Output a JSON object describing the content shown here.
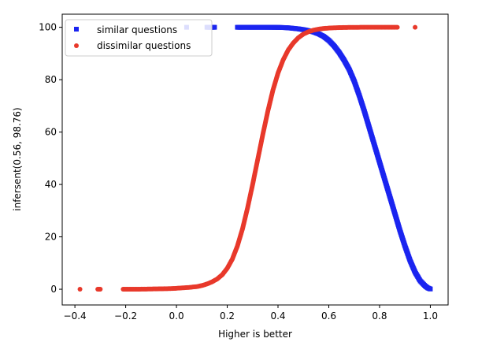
{
  "chart_data": {
    "type": "scatter",
    "title": "",
    "xlabel": "Higher is better",
    "ylabel": "infersent(0.56, 98.76)",
    "xlim": [
      -0.45,
      1.07
    ],
    "ylim": [
      -6,
      105
    ],
    "xticks": [
      -0.4,
      -0.2,
      0.0,
      0.2,
      0.4,
      0.6,
      0.8,
      1.0
    ],
    "xtick_labels": [
      "−0.4",
      "−0.2",
      "0.0",
      "0.2",
      "0.4",
      "0.6",
      "0.8",
      "1.0"
    ],
    "yticks": [
      0,
      20,
      40,
      60,
      80,
      100
    ],
    "ytick_labels": [
      "0",
      "20",
      "40",
      "60",
      "80",
      "100"
    ],
    "grid": false,
    "legend_position": "top-left",
    "series": [
      {
        "name": "similar questions",
        "color": "#1a24f0",
        "marker": "square",
        "points": [
          [
            0.04,
            100
          ],
          [
            0.12,
            100
          ],
          [
            0.13,
            100
          ],
          [
            0.14,
            100
          ],
          [
            0.15,
            100
          ],
          [
            0.24,
            100
          ],
          [
            0.25,
            100
          ],
          [
            0.26,
            100
          ],
          [
            0.28,
            100
          ],
          [
            0.29,
            100
          ],
          [
            0.3,
            100
          ],
          [
            0.31,
            100
          ],
          [
            0.32,
            100
          ],
          [
            0.33,
            100
          ],
          [
            0.34,
            100
          ],
          [
            0.35,
            100
          ],
          [
            0.36,
            99.99
          ],
          [
            0.38,
            99.98
          ],
          [
            0.4,
            99.95
          ],
          [
            0.42,
            99.9
          ],
          [
            0.44,
            99.8
          ],
          [
            0.46,
            99.6
          ],
          [
            0.48,
            99.4
          ],
          [
            0.5,
            99.1
          ],
          [
            0.52,
            98.7
          ],
          [
            0.54,
            98.2
          ],
          [
            0.56,
            97.5
          ],
          [
            0.58,
            96.5
          ],
          [
            0.6,
            95.0
          ],
          [
            0.62,
            93.0
          ],
          [
            0.64,
            90.5
          ],
          [
            0.66,
            87.5
          ],
          [
            0.68,
            84.0
          ],
          [
            0.7,
            79.5
          ],
          [
            0.72,
            74.0
          ],
          [
            0.74,
            68.0
          ],
          [
            0.76,
            61.5
          ],
          [
            0.78,
            55.0
          ],
          [
            0.8,
            48.5
          ],
          [
            0.82,
            42.0
          ],
          [
            0.84,
            35.5
          ],
          [
            0.86,
            29.0
          ],
          [
            0.88,
            22.5
          ],
          [
            0.9,
            16.5
          ],
          [
            0.92,
            11.0
          ],
          [
            0.94,
            6.5
          ],
          [
            0.96,
            3.2
          ],
          [
            0.98,
            1.2
          ],
          [
            0.99,
            0.5
          ],
          [
            1.0,
            0.1
          ]
        ]
      },
      {
        "name": "dissimilar questions",
        "color": "#e8392b",
        "marker": "circle",
        "points": [
          [
            -0.38,
            0
          ],
          [
            -0.31,
            0
          ],
          [
            -0.3,
            0
          ],
          [
            -0.21,
            0
          ],
          [
            -0.19,
            0
          ],
          [
            -0.16,
            0
          ],
          [
            -0.13,
            0.05
          ],
          [
            -0.1,
            0.1
          ],
          [
            -0.07,
            0.15
          ],
          [
            -0.04,
            0.2
          ],
          [
            -0.01,
            0.3
          ],
          [
            0.02,
            0.5
          ],
          [
            0.05,
            0.7
          ],
          [
            0.08,
            1.0
          ],
          [
            0.1,
            1.4
          ],
          [
            0.12,
            2.0
          ],
          [
            0.14,
            2.8
          ],
          [
            0.16,
            3.9
          ],
          [
            0.18,
            5.5
          ],
          [
            0.2,
            8.0
          ],
          [
            0.22,
            11.5
          ],
          [
            0.24,
            16.5
          ],
          [
            0.26,
            23.0
          ],
          [
            0.28,
            31.0
          ],
          [
            0.3,
            40.0
          ],
          [
            0.32,
            49.5
          ],
          [
            0.34,
            59.0
          ],
          [
            0.36,
            68.0
          ],
          [
            0.38,
            76.0
          ],
          [
            0.4,
            82.5
          ],
          [
            0.42,
            87.5
          ],
          [
            0.44,
            91.3
          ],
          [
            0.46,
            94.0
          ],
          [
            0.48,
            96.0
          ],
          [
            0.5,
            97.4
          ],
          [
            0.52,
            98.3
          ],
          [
            0.54,
            98.9
          ],
          [
            0.56,
            99.3
          ],
          [
            0.58,
            99.55
          ],
          [
            0.6,
            99.7
          ],
          [
            0.62,
            99.8
          ],
          [
            0.64,
            99.87
          ],
          [
            0.66,
            99.92
          ],
          [
            0.68,
            99.95
          ],
          [
            0.7,
            99.97
          ],
          [
            0.72,
            99.98
          ],
          [
            0.74,
            99.99
          ],
          [
            0.76,
            100
          ],
          [
            0.78,
            100
          ],
          [
            0.8,
            100
          ],
          [
            0.82,
            100
          ],
          [
            0.84,
            100
          ],
          [
            0.87,
            100
          ],
          [
            0.94,
            100
          ]
        ]
      }
    ]
  }
}
